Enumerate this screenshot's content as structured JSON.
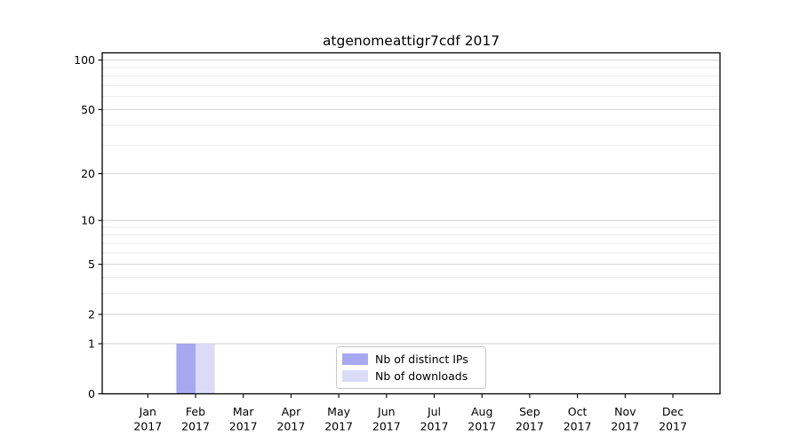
{
  "chart_data": {
    "type": "bar",
    "title": "atgenomeattigr7cdf 2017",
    "categories": [
      {
        "month": "Jan",
        "year": "2017"
      },
      {
        "month": "Feb",
        "year": "2017"
      },
      {
        "month": "Mar",
        "year": "2017"
      },
      {
        "month": "Apr",
        "year": "2017"
      },
      {
        "month": "May",
        "year": "2017"
      },
      {
        "month": "Jun",
        "year": "2017"
      },
      {
        "month": "Jul",
        "year": "2017"
      },
      {
        "month": "Aug",
        "year": "2017"
      },
      {
        "month": "Sep",
        "year": "2017"
      },
      {
        "month": "Oct",
        "year": "2017"
      },
      {
        "month": "Nov",
        "year": "2017"
      },
      {
        "month": "Dec",
        "year": "2017"
      }
    ],
    "series": [
      {
        "name": "Nb of distinct IPs",
        "color": "#a8a8f0",
        "values": [
          0,
          1,
          0,
          0,
          0,
          0,
          0,
          0,
          0,
          0,
          0,
          0
        ]
      },
      {
        "name": "Nb of downloads",
        "color": "#dbdbf8",
        "values": [
          0,
          1,
          0,
          0,
          0,
          0,
          0,
          0,
          0,
          0,
          0,
          0
        ]
      }
    ],
    "y_axis": {
      "scale": "log1p",
      "tick_values": [
        0,
        1,
        2,
        5,
        10,
        20,
        50,
        100
      ],
      "tick_labels": [
        "0",
        "1",
        "2",
        "5",
        "10",
        "20",
        "50",
        "100"
      ],
      "minor_gridline_values": [
        3,
        4,
        6,
        7,
        8,
        9,
        30,
        40,
        60,
        70,
        80,
        90,
        110
      ],
      "ylim": [
        0,
        111
      ]
    },
    "grid": "horizontal",
    "legend_position": "bottom-center"
  },
  "colors": {
    "background": "#ffffff",
    "axis": "#000000",
    "tick_text": "#000000",
    "major_grid": "#d2d2d2",
    "minor_grid": "#ebebeb",
    "legend_border": "#c9c9c9"
  }
}
